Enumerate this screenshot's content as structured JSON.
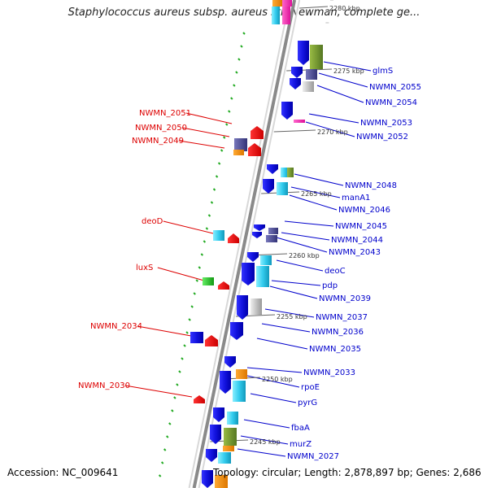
{
  "title": "Staphylococcus aureus subsp. aureus str. Newman, complete ge...",
  "accession": "Accession: NC_009641",
  "topology": "Topology: circular; Length: 2,878,897 bp; Genes: 2,686",
  "colors": {
    "strand_gene": "#1a1aee",
    "backbone": "#8a8a8a",
    "gc_dash": "#22aa22",
    "left_label": "#dd0000",
    "right_label": "#0000cc"
  },
  "scale_ticks": [
    "2280 kbp",
    "2275 kbp",
    "2270 kbp",
    "2265 kbp",
    "2260 kbp",
    "2255 kbp",
    "2250 kbp",
    "2245 kbp"
  ],
  "left_genes": [
    "NWMN_2051",
    "NWMN_2050",
    "NWMN_2049",
    "deoD",
    "luxS",
    "NWMN_2034",
    "NWMN_2030"
  ],
  "right_genes": [
    "glmS",
    "NWMN_2055",
    "NWMN_2054",
    "NWMN_2053",
    "NWMN_2052",
    "NWMN_2048",
    "manA1",
    "NWMN_2046",
    "NWMN_2045",
    "NWMN_2044",
    "NWMN_2043",
    "deoC",
    "pdp",
    "NWMN_2039",
    "NWMN_2037",
    "NWMN_2036",
    "NWMN_2035",
    "NWMN_2033",
    "rpoE",
    "pyrG",
    "fbaA",
    "murZ",
    "NWMN_2027"
  ]
}
